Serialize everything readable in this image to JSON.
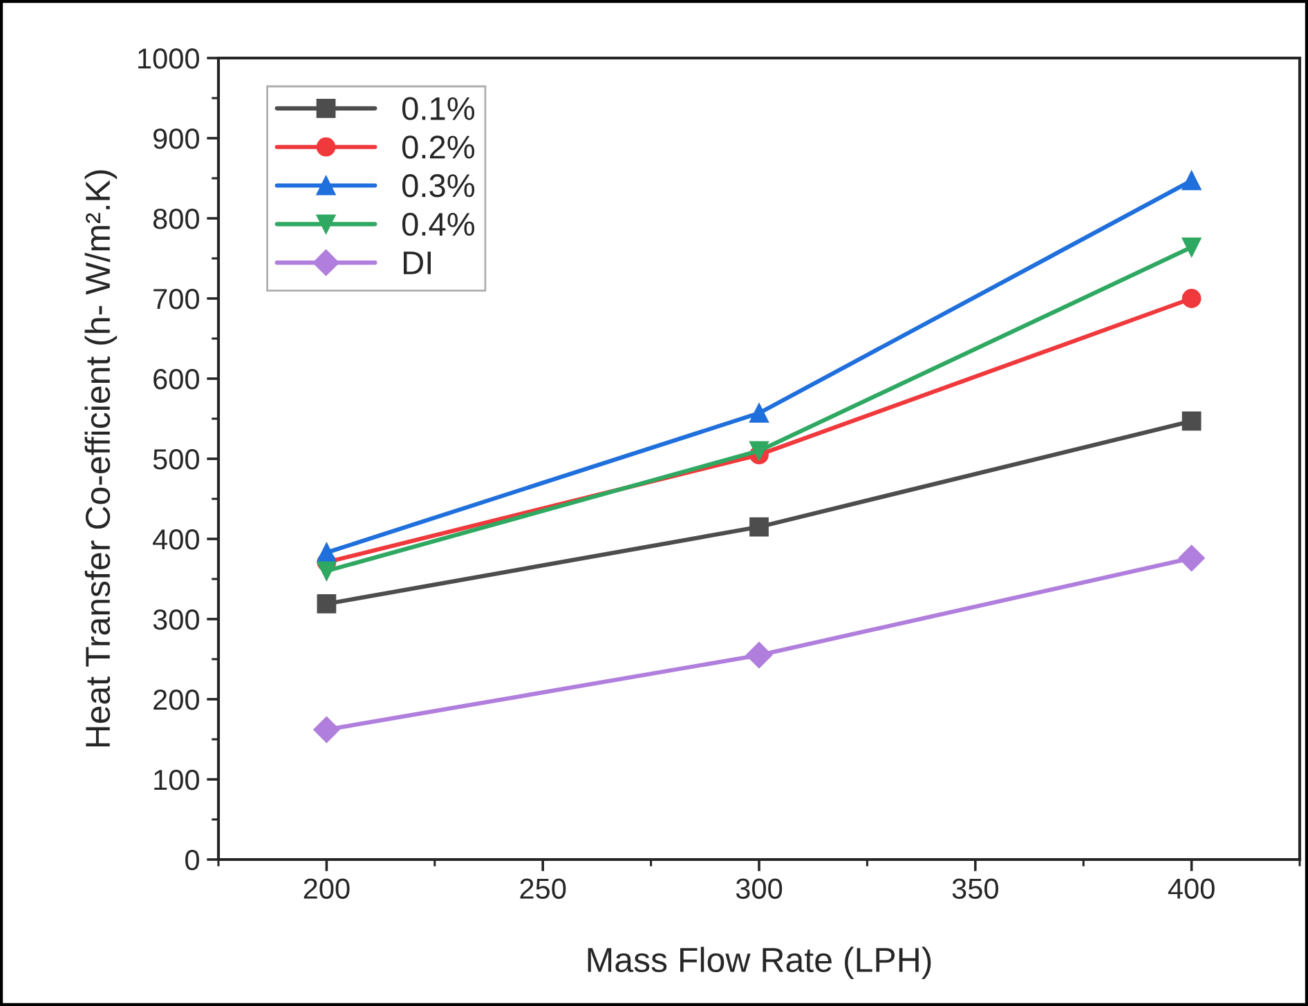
{
  "chart_data": {
    "type": "line",
    "xlabel": "Mass Flow Rate (LPH)",
    "ylabel": "Heat Transfer Co-efficient (h- W/m².K)",
    "x": [
      200,
      300,
      400
    ],
    "series": [
      {
        "name": "0.1%",
        "color": "#4d4d4d",
        "marker": "square",
        "values": [
          319,
          415,
          547
        ]
      },
      {
        "name": "0.2%",
        "color": "#f0393c",
        "marker": "circle",
        "values": [
          371,
          505,
          700
        ]
      },
      {
        "name": "0.3%",
        "color": "#1f6fdc",
        "marker": "triangle",
        "values": [
          383,
          557,
          847
        ]
      },
      {
        "name": "0.4%",
        "color": "#2fa862",
        "marker": "triangle_down",
        "values": [
          360,
          510,
          764
        ]
      },
      {
        "name": "DI",
        "color": "#b07fdd",
        "marker": "diamond",
        "values": [
          162,
          255,
          376
        ]
      }
    ],
    "xlim": [
      175,
      425
    ],
    "xticks": [
      200,
      250,
      300,
      350,
      400
    ],
    "ylim": [
      0,
      1000
    ],
    "yticks": [
      0,
      100,
      200,
      300,
      400,
      500,
      600,
      700,
      800,
      900,
      1000
    ],
    "grid": false,
    "legend": "top left",
    "line_style": "solid"
  }
}
